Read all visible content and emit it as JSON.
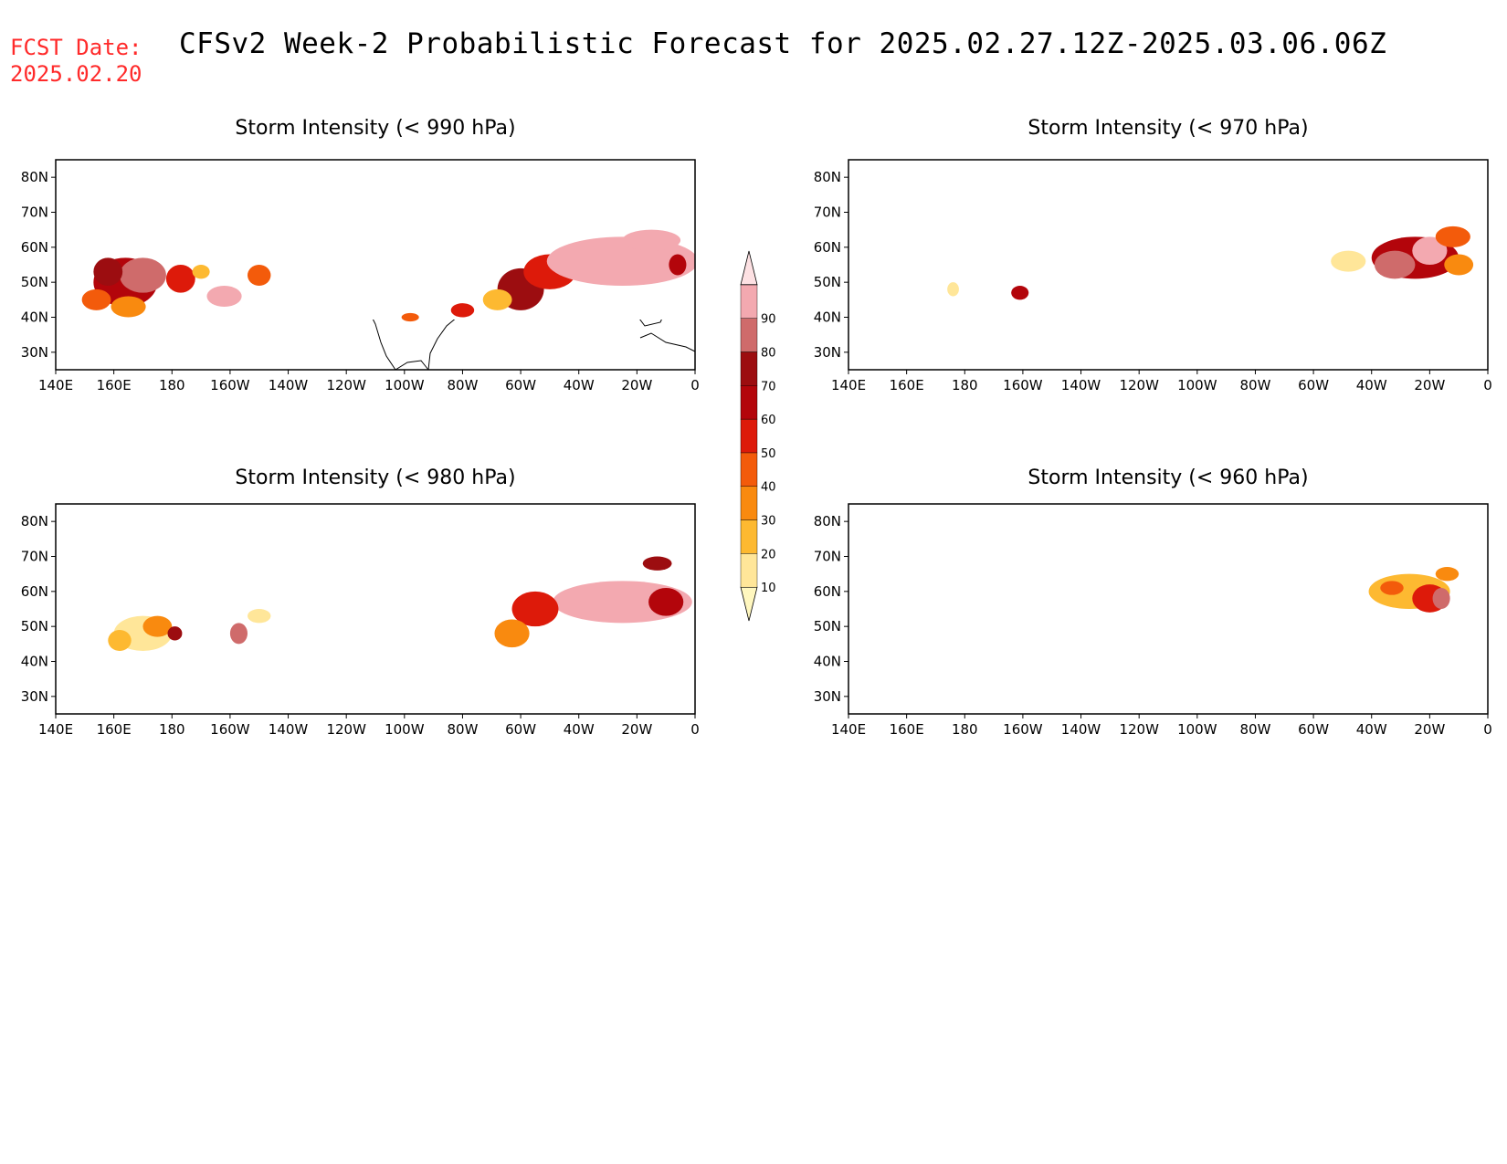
{
  "header": {
    "fcst_label": "FCST Date:",
    "fcst_date": "2025.02.20",
    "title": "CFSv2 Week-2 Probabilistic Forecast for 2025.02.27.12Z-2025.03.06.06Z"
  },
  "axes": {
    "lon_ticks": [
      "140E",
      "160E",
      "180",
      "160W",
      "140W",
      "120W",
      "100W",
      "80W",
      "60W",
      "40W",
      "20W",
      "0"
    ],
    "lat_ticks": [
      "80N",
      "70N",
      "60N",
      "50N",
      "40N",
      "30N"
    ],
    "lon_range_deg": [
      140,
      360
    ],
    "lat_range_deg": [
      25,
      85
    ]
  },
  "colorbar": {
    "levels": [
      "10",
      "20",
      "30",
      "40",
      "50",
      "60",
      "70",
      "80",
      "90"
    ],
    "colors": [
      "#fff7bf",
      "#ffe699",
      "#fdb931",
      "#f98a0f",
      "#f35b0b",
      "#dd1a0a",
      "#b3050b",
      "#9c0d10",
      "#cf6b6b",
      "#f3a9b0",
      "#fde1e3"
    ]
  },
  "panels": [
    {
      "id": "p990",
      "title": "Storm Intensity (< 990 hPa)",
      "patches": [
        {
          "lon": 164,
          "lat": 50,
          "rx": 11,
          "ry": 7,
          "cls": 6
        },
        {
          "lon": 170,
          "lat": 52,
          "rx": 8,
          "ry": 5,
          "cls": 8
        },
        {
          "lon": 158,
          "lat": 53,
          "rx": 5,
          "ry": 4,
          "cls": 7
        },
        {
          "lon": 154,
          "lat": 45,
          "rx": 5,
          "ry": 3,
          "cls": 4
        },
        {
          "lon": 165,
          "lat": 43,
          "rx": 6,
          "ry": 3,
          "cls": 3
        },
        {
          "lon": 183,
          "lat": 51,
          "rx": 5,
          "ry": 4,
          "cls": 5
        },
        {
          "lon": 198,
          "lat": 46,
          "rx": 6,
          "ry": 3,
          "cls": 9
        },
        {
          "lon": 210,
          "lat": 52,
          "rx": 4,
          "ry": 3,
          "cls": 4
        },
        {
          "lon": 190,
          "lat": 53,
          "rx": 3,
          "ry": 2,
          "cls": 2
        },
        {
          "lon": 262,
          "lat": 40,
          "rx": 3,
          "ry": 1.2,
          "cls": 4
        },
        {
          "lon": 280,
          "lat": 42,
          "rx": 4,
          "ry": 2,
          "cls": 5
        },
        {
          "lon": 300,
          "lat": 48,
          "rx": 8,
          "ry": 6,
          "cls": 7
        },
        {
          "lon": 310,
          "lat": 53,
          "rx": 9,
          "ry": 5,
          "cls": 5
        },
        {
          "lon": 335,
          "lat": 56,
          "rx": 26,
          "ry": 7,
          "cls": 9
        },
        {
          "lon": 345,
          "lat": 62,
          "rx": 10,
          "ry": 3,
          "cls": 9
        },
        {
          "lon": 354,
          "lat": 55,
          "rx": 3,
          "ry": 3,
          "cls": 6
        },
        {
          "lon": 292,
          "lat": 45,
          "rx": 5,
          "ry": 3,
          "cls": 2
        }
      ]
    },
    {
      "id": "p970",
      "title": "Storm Intensity (< 970 hPa)",
      "patches": [
        {
          "lon": 335,
          "lat": 57,
          "rx": 15,
          "ry": 6,
          "cls": 6
        },
        {
          "lon": 328,
          "lat": 55,
          "rx": 7,
          "ry": 4,
          "cls": 8
        },
        {
          "lon": 340,
          "lat": 59,
          "rx": 6,
          "ry": 4,
          "cls": 9
        },
        {
          "lon": 312,
          "lat": 56,
          "rx": 6,
          "ry": 3,
          "cls": 1
        },
        {
          "lon": 350,
          "lat": 55,
          "rx": 5,
          "ry": 3,
          "cls": 3
        },
        {
          "lon": 348,
          "lat": 63,
          "rx": 6,
          "ry": 3,
          "cls": 4
        },
        {
          "lon": 176,
          "lat": 48,
          "rx": 2,
          "ry": 2,
          "cls": 1
        },
        {
          "lon": 199,
          "lat": 47,
          "rx": 3,
          "ry": 2,
          "cls": 6
        }
      ]
    },
    {
      "id": "p980",
      "title": "Storm Intensity (< 980 hPa)",
      "patches": [
        {
          "lon": 170,
          "lat": 48,
          "rx": 10,
          "ry": 5,
          "cls": 1
        },
        {
          "lon": 175,
          "lat": 50,
          "rx": 5,
          "ry": 3,
          "cls": 3
        },
        {
          "lon": 181,
          "lat": 48,
          "rx": 2.5,
          "ry": 2,
          "cls": 7
        },
        {
          "lon": 162,
          "lat": 46,
          "rx": 4,
          "ry": 3,
          "cls": 2
        },
        {
          "lon": 203,
          "lat": 48,
          "rx": 3,
          "ry": 3,
          "cls": 8
        },
        {
          "lon": 210,
          "lat": 53,
          "rx": 4,
          "ry": 2,
          "cls": 1
        },
        {
          "lon": 335,
          "lat": 57,
          "rx": 24,
          "ry": 6,
          "cls": 9
        },
        {
          "lon": 305,
          "lat": 55,
          "rx": 8,
          "ry": 5,
          "cls": 5
        },
        {
          "lon": 297,
          "lat": 48,
          "rx": 6,
          "ry": 4,
          "cls": 3
        },
        {
          "lon": 350,
          "lat": 57,
          "rx": 6,
          "ry": 4,
          "cls": 6
        },
        {
          "lon": 347,
          "lat": 68,
          "rx": 5,
          "ry": 2,
          "cls": 7
        }
      ]
    },
    {
      "id": "p960",
      "title": "Storm Intensity (< 960 hPa)",
      "patches": [
        {
          "lon": 333,
          "lat": 60,
          "rx": 14,
          "ry": 5,
          "cls": 2
        },
        {
          "lon": 340,
          "lat": 58,
          "rx": 6,
          "ry": 4,
          "cls": 5
        },
        {
          "lon": 344,
          "lat": 58,
          "rx": 3,
          "ry": 3,
          "cls": 8
        },
        {
          "lon": 327,
          "lat": 61,
          "rx": 4,
          "ry": 2,
          "cls": 4
        },
        {
          "lon": 346,
          "lat": 65,
          "rx": 4,
          "ry": 2,
          "cls": 3
        }
      ]
    }
  ]
}
